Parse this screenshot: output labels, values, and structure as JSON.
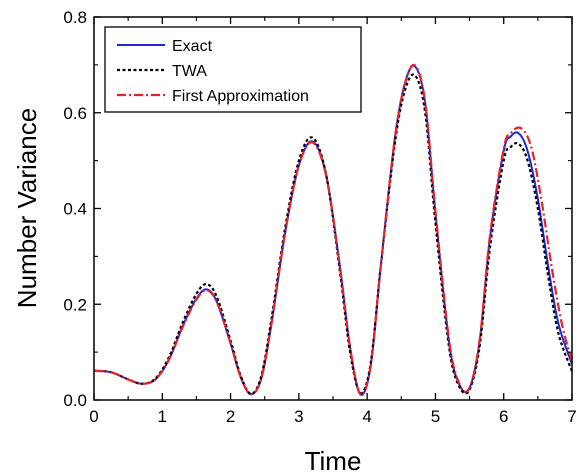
{
  "colors": {
    "exact": "#1a2ad6",
    "twa": "#000000",
    "first": "#e8222a",
    "axis": "#000000"
  },
  "chart_data": {
    "type": "line",
    "title": "",
    "xlabel": "Time",
    "ylabel": "Number Variance",
    "xlim": [
      0,
      7
    ],
    "ylim": [
      0,
      0.8
    ],
    "xticks": [
      "0",
      "1",
      "2",
      "3",
      "4",
      "5",
      "6",
      "7"
    ],
    "yticks": [
      "0.0",
      "0.2",
      "0.4",
      "0.6",
      "0.8"
    ],
    "grid": false,
    "legend_position": "top-left",
    "series": [
      {
        "name": "Exact",
        "style": "solid",
        "x": [
          0.0,
          0.25,
          0.5,
          0.7,
          0.9,
          1.1,
          1.3,
          1.5,
          1.65,
          1.8,
          2.0,
          2.15,
          2.3,
          2.45,
          2.6,
          2.8,
          3.0,
          3.2,
          3.4,
          3.6,
          3.75,
          3.9,
          4.05,
          4.2,
          4.4,
          4.55,
          4.7,
          4.85,
          5.0,
          5.2,
          5.35,
          5.5,
          5.65,
          5.8,
          6.0,
          6.1,
          6.22,
          6.35,
          6.5,
          6.65,
          6.8,
          7.0
        ],
        "y": [
          0.061,
          0.058,
          0.043,
          0.034,
          0.043,
          0.085,
          0.155,
          0.212,
          0.231,
          0.205,
          0.118,
          0.047,
          0.012,
          0.045,
          0.16,
          0.35,
          0.49,
          0.54,
          0.47,
          0.28,
          0.11,
          0.012,
          0.07,
          0.28,
          0.54,
          0.66,
          0.697,
          0.62,
          0.39,
          0.12,
          0.032,
          0.025,
          0.125,
          0.34,
          0.52,
          0.55,
          0.557,
          0.52,
          0.42,
          0.28,
          0.16,
          0.075
        ]
      },
      {
        "name": "TWA",
        "style": "dotted",
        "x": [
          0.0,
          0.25,
          0.5,
          0.7,
          0.9,
          1.1,
          1.3,
          1.5,
          1.65,
          1.8,
          2.0,
          2.15,
          2.3,
          2.45,
          2.6,
          2.8,
          3.0,
          3.2,
          3.4,
          3.6,
          3.75,
          3.9,
          4.05,
          4.2,
          4.4,
          4.55,
          4.7,
          4.85,
          5.0,
          5.2,
          5.35,
          5.5,
          5.65,
          5.8,
          6.0,
          6.1,
          6.22,
          6.35,
          6.5,
          6.65,
          6.8,
          7.0
        ],
        "y": [
          0.061,
          0.058,
          0.043,
          0.034,
          0.045,
          0.09,
          0.162,
          0.222,
          0.242,
          0.215,
          0.124,
          0.05,
          0.013,
          0.05,
          0.17,
          0.36,
          0.5,
          0.548,
          0.47,
          0.27,
          0.1,
          0.015,
          0.075,
          0.28,
          0.53,
          0.645,
          0.678,
          0.6,
          0.37,
          0.11,
          0.028,
          0.022,
          0.115,
          0.32,
          0.5,
          0.528,
          0.535,
          0.5,
          0.4,
          0.26,
          0.14,
          0.06
        ]
      },
      {
        "name": "First Approximation",
        "style": "dashdot",
        "x": [
          0.0,
          0.25,
          0.5,
          0.7,
          0.9,
          1.1,
          1.3,
          1.5,
          1.65,
          1.8,
          2.0,
          2.15,
          2.3,
          2.45,
          2.6,
          2.8,
          3.0,
          3.2,
          3.4,
          3.6,
          3.75,
          3.9,
          4.05,
          4.2,
          4.4,
          4.55,
          4.7,
          4.85,
          5.0,
          5.2,
          5.35,
          5.5,
          5.65,
          5.8,
          6.0,
          6.1,
          6.25,
          6.4,
          6.55,
          6.7,
          6.85,
          7.0
        ],
        "y": [
          0.061,
          0.058,
          0.043,
          0.034,
          0.043,
          0.085,
          0.153,
          0.21,
          0.229,
          0.204,
          0.118,
          0.047,
          0.012,
          0.045,
          0.16,
          0.35,
          0.49,
          0.538,
          0.468,
          0.28,
          0.11,
          0.012,
          0.07,
          0.28,
          0.54,
          0.658,
          0.699,
          0.622,
          0.395,
          0.125,
          0.034,
          0.026,
          0.128,
          0.345,
          0.525,
          0.557,
          0.568,
          0.53,
          0.42,
          0.28,
          0.16,
          0.08
        ]
      }
    ]
  }
}
